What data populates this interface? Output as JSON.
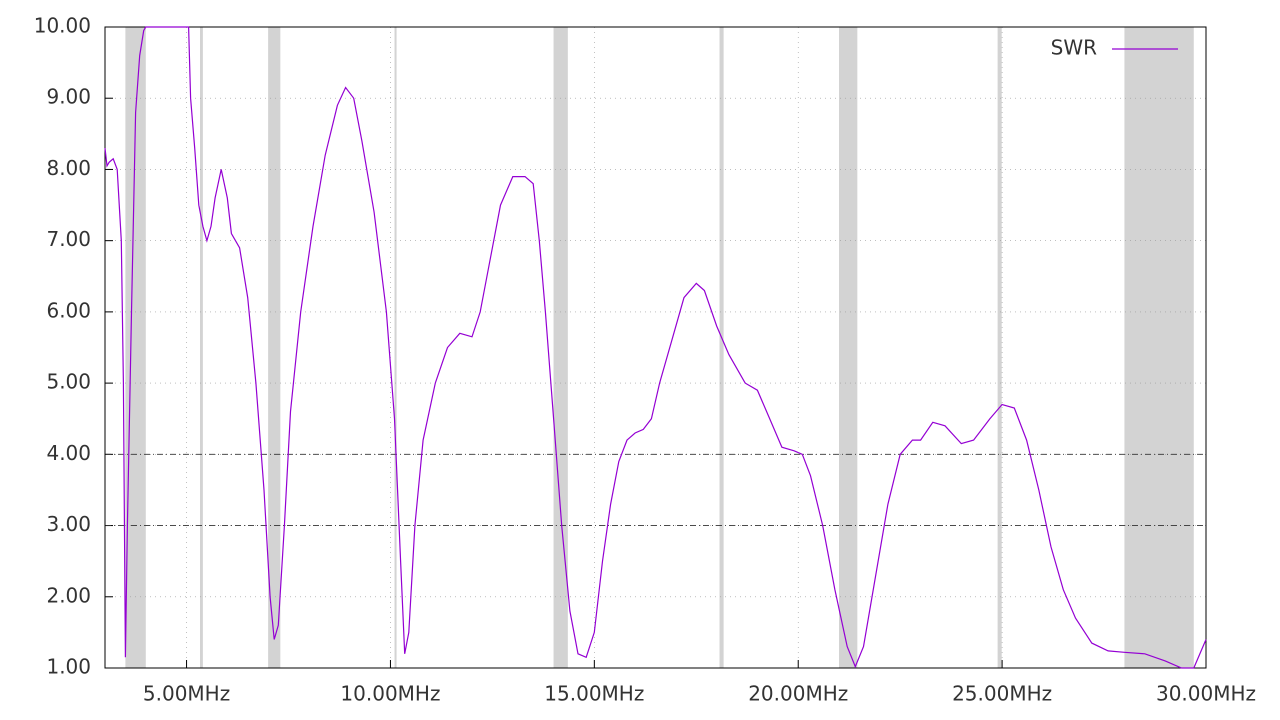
{
  "chart_data": {
    "type": "line",
    "xlim": [
      3,
      30
    ],
    "ylim": [
      1,
      10
    ],
    "xticks": [
      {
        "value": 5,
        "label": "5.00MHz"
      },
      {
        "value": 10,
        "label": "10.00MHz"
      },
      {
        "value": 15,
        "label": "15.00MHz"
      },
      {
        "value": 20,
        "label": "20.00MHz"
      },
      {
        "value": 25,
        "label": "25.00MHz"
      },
      {
        "value": 30,
        "label": "30.00MHz"
      }
    ],
    "yticks": [
      {
        "value": 1,
        "label": "1.00"
      },
      {
        "value": 2,
        "label": "2.00"
      },
      {
        "value": 3,
        "label": "3.00"
      },
      {
        "value": 4,
        "label": "4.00"
      },
      {
        "value": 5,
        "label": "5.00"
      },
      {
        "value": 6,
        "label": "6.00"
      },
      {
        "value": 7,
        "label": "7.00"
      },
      {
        "value": 8,
        "label": "8.00"
      },
      {
        "value": 9,
        "label": "9.00"
      },
      {
        "value": 10,
        "label": "10.00"
      }
    ],
    "grid": true,
    "legend_position": "top-right",
    "reference_lines": [
      3,
      4
    ],
    "shaded_ranges": [
      [
        3.5,
        4.0
      ],
      [
        5.33,
        5.4
      ],
      [
        7.0,
        7.3
      ],
      [
        10.1,
        10.15
      ],
      [
        14.0,
        14.35
      ],
      [
        18.07,
        18.17
      ],
      [
        21.0,
        21.45
      ],
      [
        24.89,
        24.99
      ],
      [
        28.0,
        29.7
      ]
    ],
    "x": [
      3.0,
      3.05,
      3.1,
      3.2,
      3.3,
      3.4,
      3.45,
      3.5,
      3.55,
      3.65,
      3.75,
      3.85,
      3.95,
      4.0,
      5.05,
      5.1,
      5.2,
      5.3,
      5.4,
      5.5,
      5.6,
      5.7,
      5.85,
      6.0,
      6.1,
      6.3,
      6.5,
      6.7,
      6.9,
      7.05,
      7.15,
      7.25,
      7.4,
      7.55,
      7.8,
      8.1,
      8.4,
      8.7,
      8.9,
      9.1,
      9.3,
      9.6,
      9.9,
      10.1,
      10.25,
      10.35,
      10.45,
      10.6,
      10.8,
      11.1,
      11.4,
      11.7,
      12.0,
      12.2,
      12.4,
      12.7,
      13.0,
      13.3,
      13.5,
      13.65,
      13.8,
      14.0,
      14.2,
      14.4,
      14.6,
      14.8,
      15.0,
      15.2,
      15.4,
      15.6,
      15.8,
      16.0,
      16.2,
      16.4,
      16.6,
      16.9,
      17.2,
      17.5,
      17.7,
      18.0,
      18.3,
      18.7,
      19.0,
      19.3,
      19.6,
      19.9,
      20.1,
      20.3,
      20.6,
      20.9,
      21.2,
      21.4,
      21.6,
      21.9,
      22.2,
      22.5,
      22.8,
      23.0,
      23.3,
      23.6,
      24.0,
      24.3,
      24.7,
      25.0,
      25.3,
      25.6,
      25.9,
      26.2,
      26.5,
      26.8,
      27.2,
      27.6,
      28.0,
      28.5,
      29.0,
      29.4,
      29.7,
      30.0
    ],
    "series": [
      {
        "name": "SWR",
        "color": "#9400d3",
        "values": [
          8.3,
          8.05,
          8.1,
          8.15,
          8.0,
          7.0,
          5.0,
          1.15,
          3.0,
          6.0,
          8.8,
          9.6,
          9.95,
          10,
          10,
          9.0,
          8.3,
          7.5,
          7.2,
          7.0,
          7.2,
          7.6,
          8.0,
          7.6,
          7.1,
          6.9,
          6.2,
          5.0,
          3.5,
          2.0,
          1.4,
          1.6,
          3.0,
          4.6,
          6.0,
          7.2,
          8.2,
          8.9,
          9.15,
          9.0,
          8.4,
          7.4,
          6.0,
          4.5,
          2.5,
          1.2,
          1.5,
          3.0,
          4.2,
          5.0,
          5.5,
          5.7,
          5.65,
          6.0,
          6.6,
          7.5,
          7.9,
          7.9,
          7.8,
          7.0,
          6.0,
          4.5,
          3.0,
          1.8,
          1.2,
          1.15,
          1.5,
          2.5,
          3.3,
          3.9,
          4.2,
          4.3,
          4.35,
          4.5,
          5.0,
          5.6,
          6.2,
          6.4,
          6.3,
          5.8,
          5.4,
          5.0,
          4.9,
          4.5,
          4.1,
          4.05,
          4.0,
          3.7,
          3.0,
          2.1,
          1.3,
          1.02,
          1.3,
          2.3,
          3.3,
          4.0,
          4.2,
          4.2,
          4.45,
          4.4,
          4.15,
          4.2,
          4.5,
          4.7,
          4.65,
          4.2,
          3.5,
          2.7,
          2.1,
          1.7,
          1.35,
          1.24,
          1.22,
          1.2,
          1.1,
          1.0,
          1.0,
          1.4
        ]
      }
    ]
  }
}
